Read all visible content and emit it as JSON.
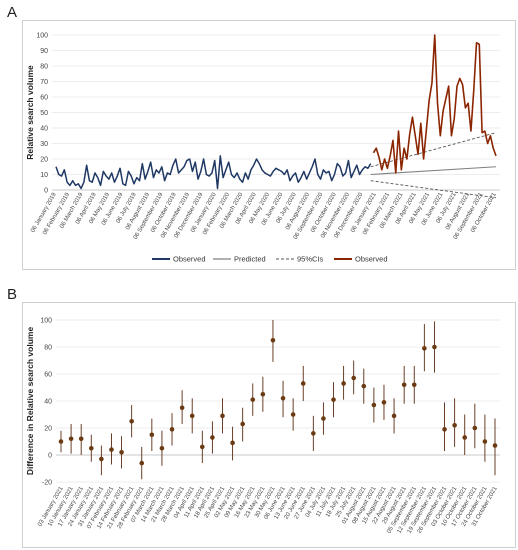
{
  "panels": {
    "a_label": "A",
    "b_label": "B"
  },
  "chart_data": [
    {
      "type": "line",
      "ylabel": "Relative search volume",
      "ylim": [
        0,
        100
      ],
      "yticks": [
        0,
        10,
        20,
        30,
        40,
        50,
        60,
        70,
        80,
        90,
        100
      ],
      "grid": true,
      "legend_position": "bottom",
      "x_tick_labels": [
        "06 January 2019",
        "06 February 2019",
        "06 March 2019",
        "06 April 2019",
        "06 May 2019",
        "06 June 2019",
        "06 July 2019",
        "06 August 2019",
        "06 September 2019",
        "06 October 2019",
        "06 November 2019",
        "06 December 2019",
        "06 January 2020",
        "06 February 2020",
        "06 March 2020",
        "06 April 2020",
        "06 May 2020",
        "06 June 2020",
        "06 July 2020",
        "06 August 2020",
        "06 September 2020",
        "06 October 2020",
        "06 November 2020",
        "06 December 2020",
        "06 January 2021",
        "06 February 2021",
        "06 March 2021",
        "06 April 2021",
        "06 May 2021",
        "06 June 2021",
        "06 July 2021",
        "06 August 2021",
        "06 September 2021",
        "06 October 2021"
      ],
      "legend": [
        "Observed",
        "Predicted",
        "95%CIs",
        "Observed"
      ],
      "colors": {
        "observed_2019_2020": "#1f3864",
        "predicted": "#808080",
        "ci": "#555555",
        "observed_2021": "#8b2500"
      },
      "series_pre": [
        15,
        10,
        9,
        13,
        5,
        3,
        6,
        3,
        4,
        1,
        5,
        16,
        6,
        5,
        11,
        8,
        3,
        12,
        9,
        7,
        11,
        5,
        9,
        14,
        4,
        3,
        12,
        9,
        4,
        8,
        6,
        17,
        7,
        12,
        18,
        8,
        13,
        11,
        15,
        6,
        11,
        10,
        16,
        20,
        11,
        13,
        15,
        19,
        20,
        12,
        18,
        7,
        12,
        20,
        10,
        9,
        11,
        19,
        1,
        22,
        8,
        13,
        18,
        10,
        8,
        11,
        7,
        5,
        11,
        7,
        13,
        16,
        20,
        17,
        13,
        11,
        10,
        9,
        12,
        14,
        13,
        12,
        10,
        13,
        6,
        9,
        11,
        5,
        8,
        12,
        7,
        11,
        15,
        20,
        10,
        7,
        13,
        11,
        12,
        6,
        10,
        17,
        15,
        9,
        11,
        19,
        8,
        12,
        16,
        10,
        13,
        15,
        14,
        17
      ],
      "series_post": [
        24,
        27,
        21,
        13,
        20,
        14,
        22,
        32,
        11,
        38,
        13,
        27,
        20,
        36,
        47,
        35,
        23,
        43,
        20,
        39,
        58,
        69,
        100,
        56,
        35,
        51,
        59,
        67,
        35,
        46,
        67,
        72,
        68,
        53,
        56,
        38,
        64,
        95,
        94,
        37,
        38,
        30,
        35,
        27,
        22
      ],
      "predicted_start": 10,
      "predicted_end": 15,
      "ci_upper_start": 15,
      "ci_upper_end": 37,
      "ci_lower_start": 6,
      "ci_lower_end": -5
    },
    {
      "type": "scatter",
      "ylabel": "Difference in Relative search volume",
      "ylim": [
        -20,
        100
      ],
      "yticks": [
        -20,
        0,
        20,
        40,
        60,
        80,
        100
      ],
      "grid": true,
      "error_bars": true,
      "colors": {
        "point": "#6b3a12",
        "bar": "#5a2b10"
      },
      "categories": [
        "03 January 2021",
        "10 January 2021",
        "17 January 2021",
        "24 January 2021",
        "31 January 2021",
        "07 February 2021",
        "14 February 2021",
        "21 February 2021",
        "28 February 2021",
        "07 March 2021",
        "14 March 2021",
        "21 March 2021",
        "28 March 2021",
        "04 April 2021",
        "11 April 2021",
        "18 April 2021",
        "25 April 2021",
        "02 May 2021",
        "09 May 2021",
        "16 May 2021",
        "23 May 2021",
        "30 May 2021",
        "06 June 2021",
        "13 June 2021",
        "20 June 2021",
        "27 June 2021",
        "04 July 2021",
        "11 July 2021",
        "18 July 2021",
        "25 July 2021",
        "01 August 2021",
        "08 August 2021",
        "15 August 2021",
        "22 August 2021",
        "29 August 2021",
        "05 September 2021",
        "12 September 2021",
        "19 September 2021",
        "26 September 2021",
        "03 October 2021",
        "10 October 2021",
        "17 October 2021",
        "24 October 2021",
        "31 October 2021"
      ],
      "values": [
        10,
        12,
        12,
        5,
        -3,
        4,
        2,
        25,
        -6,
        15,
        5,
        19,
        35,
        29,
        6,
        13,
        29,
        9,
        23,
        41,
        45,
        85,
        42,
        30,
        53,
        16,
        27,
        41,
        53,
        57,
        51,
        37,
        39,
        29,
        52,
        52,
        79,
        80,
        19,
        22,
        13,
        20,
        10,
        7
      ],
      "lower": [
        2,
        1,
        0,
        -5,
        -15,
        -7,
        -10,
        13,
        -18,
        3,
        -8,
        7,
        23,
        16,
        -6,
        1,
        16,
        -4,
        10,
        29,
        32,
        69,
        28,
        18,
        40,
        3,
        15,
        28,
        41,
        45,
        38,
        24,
        26,
        16,
        38,
        38,
        62,
        61,
        3,
        6,
        0,
        5,
        -5,
        -15
      ],
      "upper": [
        18,
        23,
        23,
        15,
        7,
        16,
        14,
        37,
        6,
        27,
        18,
        31,
        48,
        42,
        18,
        25,
        42,
        21,
        35,
        53,
        58,
        100,
        55,
        42,
        66,
        29,
        39,
        54,
        66,
        70,
        64,
        50,
        52,
        42,
        66,
        66,
        97,
        99,
        39,
        42,
        30,
        38,
        30,
        27
      ]
    }
  ]
}
